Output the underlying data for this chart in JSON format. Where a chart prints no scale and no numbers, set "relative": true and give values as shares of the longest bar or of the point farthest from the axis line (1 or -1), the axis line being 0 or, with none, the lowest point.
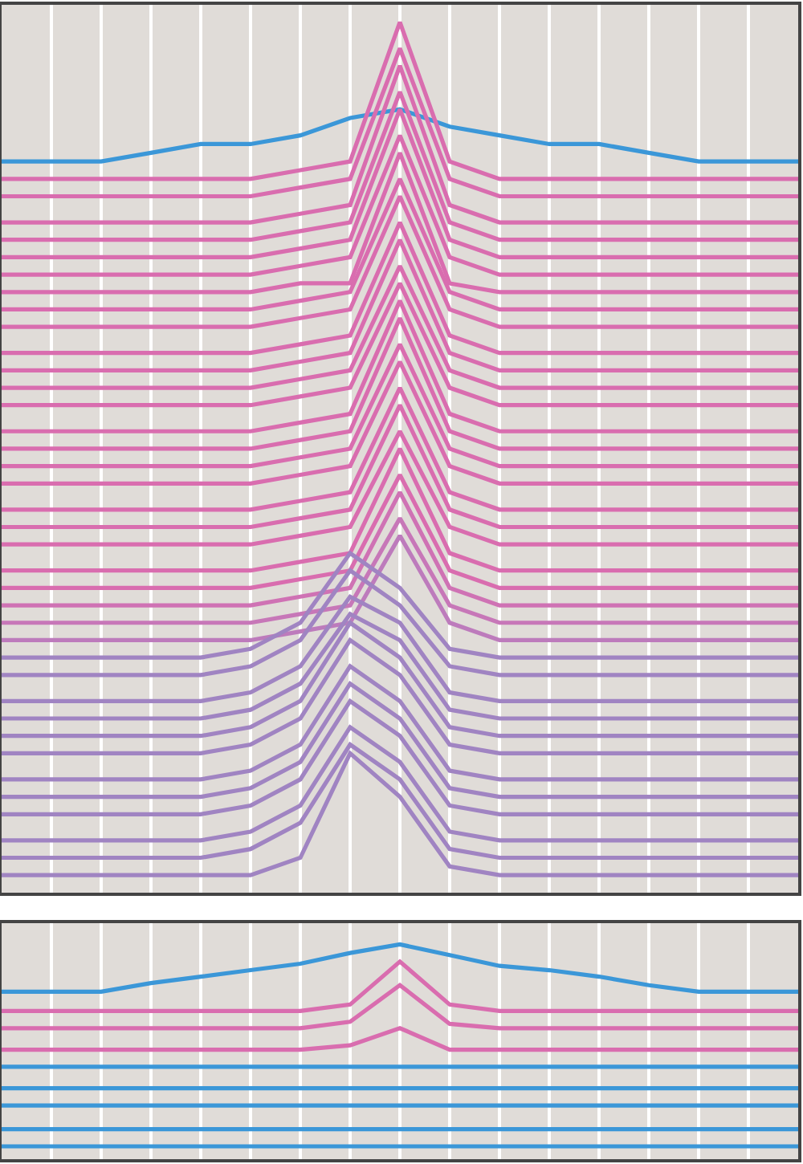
{
  "chart_data": [
    {
      "type": "line",
      "relative": true,
      "grid": "x",
      "marker": "none",
      "line_style": "solid",
      "categories": [
        null,
        null,
        null,
        null,
        null,
        null,
        null,
        null,
        null,
        null,
        null,
        null,
        null,
        null,
        null,
        null,
        null
      ],
      "series": [
        {
          "color": "#3b97d8",
          "values": [
            0.84,
            0.84,
            0.84,
            0.85,
            0.86,
            0.86,
            0.87,
            0.89,
            0.9,
            0.88,
            0.87,
            0.86,
            0.86,
            0.85,
            0.84,
            0.84,
            0.84
          ]
        },
        {
          "color": "#d96daf",
          "values": [
            0.82,
            0.82,
            0.82,
            0.82,
            0.82,
            0.82,
            0.83,
            0.84,
            1.0,
            0.84,
            0.82,
            0.82,
            0.82,
            0.82,
            0.82,
            0.82,
            0.82
          ]
        },
        {
          "color": "#d96daf",
          "values": [
            0.8,
            0.8,
            0.8,
            0.8,
            0.8,
            0.8,
            0.81,
            0.82,
            0.97,
            0.82,
            0.8,
            0.8,
            0.8,
            0.8,
            0.8,
            0.8,
            0.8
          ]
        },
        {
          "color": "#d96daf",
          "values": [
            0.77,
            0.77,
            0.77,
            0.77,
            0.77,
            0.77,
            0.78,
            0.79,
            0.95,
            0.79,
            0.77,
            0.77,
            0.77,
            0.77,
            0.77,
            0.77,
            0.77
          ]
        },
        {
          "color": "#d96daf",
          "values": [
            0.75,
            0.75,
            0.75,
            0.75,
            0.75,
            0.75,
            0.76,
            0.77,
            0.92,
            0.77,
            0.75,
            0.75,
            0.75,
            0.75,
            0.75,
            0.75,
            0.75
          ]
        },
        {
          "color": "#d96daf",
          "values": [
            0.73,
            0.73,
            0.73,
            0.73,
            0.73,
            0.73,
            0.74,
            0.75,
            0.9,
            0.75,
            0.73,
            0.73,
            0.73,
            0.73,
            0.73,
            0.73,
            0.73
          ]
        },
        {
          "color": "#d96daf",
          "values": [
            0.71,
            0.71,
            0.71,
            0.71,
            0.71,
            0.71,
            0.72,
            0.73,
            0.87,
            0.73,
            0.71,
            0.71,
            0.71,
            0.71,
            0.71,
            0.71,
            0.71
          ]
        },
        {
          "color": "#d96daf",
          "values": [
            0.69,
            0.69,
            0.69,
            0.69,
            0.69,
            0.69,
            0.7,
            0.7,
            0.85,
            0.7,
            0.69,
            0.69,
            0.69,
            0.69,
            0.69,
            0.69,
            0.69
          ]
        },
        {
          "color": "#d96daf",
          "values": [
            0.67,
            0.67,
            0.67,
            0.67,
            0.67,
            0.67,
            0.68,
            0.69,
            0.82,
            0.69,
            0.67,
            0.67,
            0.67,
            0.67,
            0.67,
            0.67,
            0.67
          ]
        },
        {
          "color": "#d96daf",
          "values": [
            0.65,
            0.65,
            0.65,
            0.65,
            0.65,
            0.65,
            0.66,
            0.67,
            0.8,
            0.67,
            0.65,
            0.65,
            0.65,
            0.65,
            0.65,
            0.65,
            0.65
          ]
        },
        {
          "color": "#d96daf",
          "values": [
            0.62,
            0.62,
            0.62,
            0.62,
            0.62,
            0.62,
            0.63,
            0.64,
            0.77,
            0.64,
            0.62,
            0.62,
            0.62,
            0.62,
            0.62,
            0.62,
            0.62
          ]
        },
        {
          "color": "#d96daf",
          "values": [
            0.6,
            0.6,
            0.6,
            0.6,
            0.6,
            0.6,
            0.61,
            0.62,
            0.75,
            0.62,
            0.6,
            0.6,
            0.6,
            0.6,
            0.6,
            0.6,
            0.6
          ]
        },
        {
          "color": "#d96daf",
          "values": [
            0.58,
            0.58,
            0.58,
            0.58,
            0.58,
            0.58,
            0.59,
            0.6,
            0.72,
            0.6,
            0.58,
            0.58,
            0.58,
            0.58,
            0.58,
            0.58,
            0.58
          ]
        },
        {
          "color": "#d96daf",
          "values": [
            0.56,
            0.56,
            0.56,
            0.56,
            0.56,
            0.56,
            0.57,
            0.58,
            0.7,
            0.58,
            0.56,
            0.56,
            0.56,
            0.56,
            0.56,
            0.56,
            0.56
          ]
        },
        {
          "color": "#d96daf",
          "values": [
            0.53,
            0.53,
            0.53,
            0.53,
            0.53,
            0.53,
            0.54,
            0.55,
            0.68,
            0.55,
            0.53,
            0.53,
            0.53,
            0.53,
            0.53,
            0.53,
            0.53
          ]
        },
        {
          "color": "#d96daf",
          "values": [
            0.51,
            0.51,
            0.51,
            0.51,
            0.51,
            0.51,
            0.52,
            0.53,
            0.66,
            0.53,
            0.51,
            0.51,
            0.51,
            0.51,
            0.51,
            0.51,
            0.51
          ]
        },
        {
          "color": "#d96daf",
          "values": [
            0.49,
            0.49,
            0.49,
            0.49,
            0.49,
            0.49,
            0.5,
            0.51,
            0.63,
            0.51,
            0.49,
            0.49,
            0.49,
            0.49,
            0.49,
            0.49,
            0.49
          ]
        },
        {
          "color": "#d96daf",
          "values": [
            0.47,
            0.47,
            0.47,
            0.47,
            0.47,
            0.47,
            0.48,
            0.49,
            0.61,
            0.49,
            0.47,
            0.47,
            0.47,
            0.47,
            0.47,
            0.47,
            0.47
          ]
        },
        {
          "color": "#d96daf",
          "values": [
            0.44,
            0.44,
            0.44,
            0.44,
            0.44,
            0.44,
            0.45,
            0.46,
            0.58,
            0.46,
            0.44,
            0.44,
            0.44,
            0.44,
            0.44,
            0.44,
            0.44
          ]
        },
        {
          "color": "#d96daf",
          "values": [
            0.42,
            0.42,
            0.42,
            0.42,
            0.42,
            0.42,
            0.43,
            0.44,
            0.56,
            0.44,
            0.42,
            0.42,
            0.42,
            0.42,
            0.42,
            0.42,
            0.42
          ]
        },
        {
          "color": "#d96daf",
          "values": [
            0.4,
            0.4,
            0.4,
            0.4,
            0.4,
            0.4,
            0.41,
            0.42,
            0.53,
            0.42,
            0.4,
            0.4,
            0.4,
            0.4,
            0.4,
            0.4,
            0.4
          ]
        },
        {
          "color": "#d96daf",
          "values": [
            0.37,
            0.37,
            0.37,
            0.37,
            0.37,
            0.37,
            0.38,
            0.39,
            0.51,
            0.39,
            0.37,
            0.37,
            0.37,
            0.37,
            0.37,
            0.37,
            0.37
          ]
        },
        {
          "color": "#d96daf",
          "values": [
            0.35,
            0.35,
            0.35,
            0.35,
            0.35,
            0.35,
            0.36,
            0.37,
            0.48,
            0.37,
            0.35,
            0.35,
            0.35,
            0.35,
            0.35,
            0.35,
            0.35
          ]
        },
        {
          "color": "#cf72b4",
          "values": [
            0.33,
            0.33,
            0.33,
            0.33,
            0.33,
            0.33,
            0.34,
            0.35,
            0.46,
            0.35,
            0.33,
            0.33,
            0.33,
            0.33,
            0.33,
            0.33,
            0.33
          ]
        },
        {
          "color": "#c777b8",
          "values": [
            0.31,
            0.31,
            0.31,
            0.31,
            0.31,
            0.31,
            0.32,
            0.33,
            0.43,
            0.33,
            0.31,
            0.31,
            0.31,
            0.31,
            0.31,
            0.31,
            0.31
          ]
        },
        {
          "color": "#bd7bbc",
          "values": [
            0.29,
            0.29,
            0.29,
            0.29,
            0.29,
            0.29,
            0.3,
            0.31,
            0.41,
            0.31,
            0.29,
            0.29,
            0.29,
            0.29,
            0.29,
            0.29,
            0.29
          ]
        },
        {
          "color": "#a084c2",
          "values": [
            0.27,
            0.27,
            0.27,
            0.27,
            0.27,
            0.28,
            0.31,
            0.39,
            0.35,
            0.28,
            0.27,
            0.27,
            0.27,
            0.27,
            0.27,
            0.27,
            0.27
          ]
        },
        {
          "color": "#a084c2",
          "values": [
            0.25,
            0.25,
            0.25,
            0.25,
            0.25,
            0.26,
            0.29,
            0.37,
            0.33,
            0.26,
            0.25,
            0.25,
            0.25,
            0.25,
            0.25,
            0.25,
            0.25
          ]
        },
        {
          "color": "#a084c2",
          "values": [
            0.22,
            0.22,
            0.22,
            0.22,
            0.22,
            0.23,
            0.26,
            0.34,
            0.31,
            0.23,
            0.22,
            0.22,
            0.22,
            0.22,
            0.22,
            0.22,
            0.22
          ]
        },
        {
          "color": "#a084c2",
          "values": [
            0.2,
            0.2,
            0.2,
            0.2,
            0.2,
            0.21,
            0.24,
            0.32,
            0.29,
            0.21,
            0.2,
            0.2,
            0.2,
            0.2,
            0.2,
            0.2,
            0.2
          ]
        },
        {
          "color": "#a084c2",
          "values": [
            0.18,
            0.18,
            0.18,
            0.18,
            0.18,
            0.19,
            0.22,
            0.31,
            0.27,
            0.19,
            0.18,
            0.18,
            0.18,
            0.18,
            0.18,
            0.18,
            0.18
          ]
        },
        {
          "color": "#a084c2",
          "values": [
            0.16,
            0.16,
            0.16,
            0.16,
            0.16,
            0.17,
            0.2,
            0.29,
            0.25,
            0.17,
            0.16,
            0.16,
            0.16,
            0.16,
            0.16,
            0.16,
            0.16
          ]
        },
        {
          "color": "#a084c2",
          "values": [
            0.13,
            0.13,
            0.13,
            0.13,
            0.13,
            0.14,
            0.17,
            0.26,
            0.22,
            0.14,
            0.13,
            0.13,
            0.13,
            0.13,
            0.13,
            0.13,
            0.13
          ]
        },
        {
          "color": "#a084c2",
          "values": [
            0.11,
            0.11,
            0.11,
            0.11,
            0.11,
            0.12,
            0.15,
            0.24,
            0.2,
            0.12,
            0.11,
            0.11,
            0.11,
            0.11,
            0.11,
            0.11,
            0.11
          ]
        },
        {
          "color": "#a084c2",
          "values": [
            0.09,
            0.09,
            0.09,
            0.09,
            0.09,
            0.1,
            0.13,
            0.22,
            0.18,
            0.1,
            0.09,
            0.09,
            0.09,
            0.09,
            0.09,
            0.09,
            0.09
          ]
        },
        {
          "color": "#a084c2",
          "values": [
            0.06,
            0.06,
            0.06,
            0.06,
            0.06,
            0.07,
            0.1,
            0.19,
            0.15,
            0.07,
            0.06,
            0.06,
            0.06,
            0.06,
            0.06,
            0.06,
            0.06
          ]
        },
        {
          "color": "#a084c2",
          "values": [
            0.04,
            0.04,
            0.04,
            0.04,
            0.04,
            0.05,
            0.08,
            0.17,
            0.13,
            0.05,
            0.04,
            0.04,
            0.04,
            0.04,
            0.04,
            0.04,
            0.04
          ]
        },
        {
          "color": "#a084c2",
          "values": [
            0.02,
            0.02,
            0.02,
            0.02,
            0.02,
            0.02,
            0.04,
            0.16,
            0.11,
            0.03,
            0.02,
            0.02,
            0.02,
            0.02,
            0.02,
            0.02,
            0.02
          ]
        }
      ]
    },
    {
      "type": "line",
      "relative": true,
      "grid": "x",
      "marker": "none",
      "line_style": "solid",
      "categories": [
        null,
        null,
        null,
        null,
        null,
        null,
        null,
        null,
        null,
        null,
        null,
        null,
        null,
        null,
        null,
        null,
        null
      ],
      "series": [
        {
          "color": "#3b97d8",
          "values": [
            0.78,
            0.78,
            0.78,
            0.82,
            0.85,
            0.88,
            0.91,
            0.96,
            1.0,
            0.95,
            0.9,
            0.88,
            0.85,
            0.81,
            0.78,
            0.78,
            0.78
          ]
        },
        {
          "color": "#d96daf",
          "values": [
            0.69,
            0.69,
            0.69,
            0.69,
            0.69,
            0.69,
            0.69,
            0.72,
            0.92,
            0.72,
            0.69,
            0.69,
            0.69,
            0.69,
            0.69,
            0.69,
            0.69
          ]
        },
        {
          "color": "#d96daf",
          "values": [
            0.61,
            0.61,
            0.61,
            0.61,
            0.61,
            0.61,
            0.61,
            0.64,
            0.81,
            0.63,
            0.61,
            0.61,
            0.61,
            0.61,
            0.61,
            0.61,
            0.61
          ]
        },
        {
          "color": "#d96daf",
          "values": [
            0.51,
            0.51,
            0.51,
            0.51,
            0.51,
            0.51,
            0.51,
            0.53,
            0.61,
            0.51,
            0.51,
            0.51,
            0.51,
            0.51,
            0.51,
            0.51,
            0.51
          ]
        },
        {
          "color": "#3b97d8",
          "values": [
            0.43,
            0.43,
            0.43,
            0.43,
            0.43,
            0.43,
            0.43,
            0.43,
            0.43,
            0.43,
            0.43,
            0.43,
            0.43,
            0.43,
            0.43,
            0.43,
            0.43
          ]
        },
        {
          "color": "#3b97d8",
          "values": [
            0.33,
            0.33,
            0.33,
            0.33,
            0.33,
            0.33,
            0.33,
            0.33,
            0.33,
            0.33,
            0.33,
            0.33,
            0.33,
            0.33,
            0.33,
            0.33,
            0.33
          ]
        },
        {
          "color": "#3b97d8",
          "values": [
            0.25,
            0.25,
            0.25,
            0.25,
            0.25,
            0.25,
            0.25,
            0.25,
            0.25,
            0.25,
            0.25,
            0.25,
            0.25,
            0.25,
            0.25,
            0.25,
            0.25
          ]
        },
        {
          "color": "#3b97d8",
          "values": [
            0.14,
            0.14,
            0.14,
            0.14,
            0.14,
            0.14,
            0.14,
            0.14,
            0.14,
            0.14,
            0.14,
            0.14,
            0.14,
            0.14,
            0.14,
            0.14,
            0.14
          ]
        },
        {
          "color": "#3b97d8",
          "values": [
            0.06,
            0.06,
            0.06,
            0.06,
            0.06,
            0.06,
            0.06,
            0.06,
            0.06,
            0.06,
            0.06,
            0.06,
            0.06,
            0.06,
            0.06,
            0.06,
            0.06
          ]
        }
      ]
    }
  ]
}
